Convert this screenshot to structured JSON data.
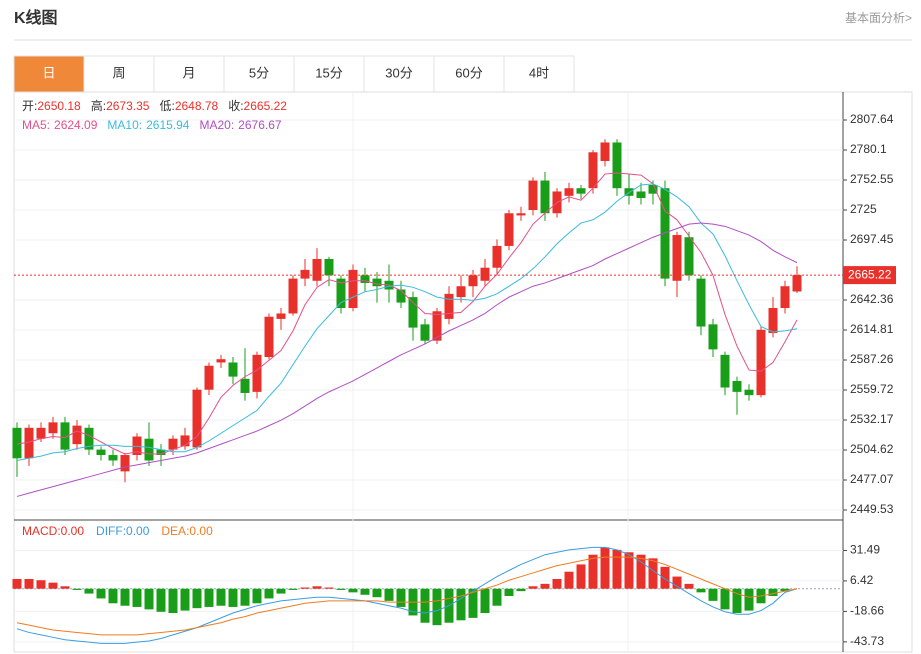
{
  "header": {
    "title": "K线图",
    "link": "基本面分析>"
  },
  "tabs": {
    "items": [
      "日",
      "周",
      "月",
      "5分",
      "15分",
      "30分",
      "60分",
      "4时"
    ],
    "active": 0
  },
  "chart_data": [
    {
      "type": "candlestick",
      "info_labels": [
        "开:",
        "高:",
        "低:",
        "收:"
      ],
      "open": [
        2525,
        2497,
        2515,
        2520,
        2530,
        2510,
        2525,
        2505,
        2500,
        2485,
        2500,
        2515,
        2505,
        2505,
        2508,
        2507,
        2560,
        2585,
        2585,
        2570,
        2558,
        2590,
        2625,
        2630,
        2662,
        2660,
        2680,
        2662,
        2635,
        2665,
        2662,
        2660,
        2652,
        2645,
        2620,
        2605,
        2625,
        2645,
        2655,
        2660,
        2672,
        2692,
        2720,
        2725,
        2752,
        2722,
        2738,
        2745,
        2745,
        2770,
        2787,
        2745,
        2742,
        2748,
        2745,
        2660,
        2700,
        2662,
        2620,
        2592,
        2568,
        2560,
        2555,
        2612,
        2635,
        2650.18
      ],
      "high": [
        2530,
        2528,
        2530,
        2535,
        2535,
        2532,
        2528,
        2508,
        2505,
        2502,
        2520,
        2530,
        2510,
        2518,
        2525,
        2562,
        2585,
        2592,
        2590,
        2598,
        2595,
        2630,
        2635,
        2665,
        2680,
        2690,
        2682,
        2665,
        2675,
        2672,
        2668,
        2675,
        2660,
        2650,
        2625,
        2635,
        2655,
        2665,
        2670,
        2680,
        2698,
        2725,
        2728,
        2755,
        2760,
        2745,
        2750,
        2748,
        2780,
        2790,
        2790,
        2758,
        2750,
        2752,
        2752,
        2705,
        2705,
        2665,
        2625,
        2595,
        2572,
        2565,
        2618,
        2645,
        2660,
        2673.35
      ],
      "low": [
        2480,
        2490,
        2512,
        2515,
        2500,
        2505,
        2500,
        2495,
        2490,
        2475,
        2495,
        2490,
        2490,
        2500,
        2505,
        2505,
        2555,
        2580,
        2565,
        2550,
        2552,
        2588,
        2615,
        2628,
        2655,
        2655,
        2655,
        2630,
        2632,
        2650,
        2640,
        2640,
        2635,
        2605,
        2602,
        2602,
        2620,
        2640,
        2645,
        2655,
        2665,
        2688,
        2715,
        2720,
        2715,
        2718,
        2732,
        2735,
        2740,
        2765,
        2738,
        2730,
        2730,
        2730,
        2655,
        2645,
        2660,
        2610,
        2590,
        2555,
        2537,
        2550,
        2553,
        2608,
        2630,
        2648.78
      ],
      "close": [
        2497,
        2525,
        2525,
        2530,
        2505,
        2527,
        2505,
        2500,
        2495,
        2500,
        2517,
        2495,
        2500,
        2515,
        2518,
        2560,
        2582,
        2588,
        2572,
        2557,
        2592,
        2627,
        2630,
        2662,
        2670,
        2680,
        2665,
        2635,
        2670,
        2658,
        2655,
        2652,
        2640,
        2617,
        2605,
        2632,
        2648,
        2655,
        2665,
        2672,
        2692,
        2722,
        2722,
        2752,
        2722,
        2742,
        2745,
        2740,
        2778,
        2787,
        2745,
        2738,
        2736,
        2740,
        2662,
        2702,
        2665,
        2618,
        2597,
        2562,
        2558,
        2555,
        2615,
        2635,
        2655,
        2665.22
      ],
      "up_color": "#e8312b",
      "down_color": "#1a9e1a",
      "series": [
        {
          "name": "MA5:",
          "color": "#e5508a",
          "values": [
            2510,
            2512,
            2515,
            2517,
            2516,
            2522,
            2518,
            2512,
            2506,
            2501,
            2503,
            2501,
            2501,
            2505,
            2509,
            2517,
            2534,
            2553,
            2564,
            2572,
            2578,
            2587,
            2596,
            2614,
            2638,
            2654,
            2661,
            2658,
            2660,
            2660,
            2657,
            2656,
            2651,
            2640,
            2630,
            2629,
            2630,
            2631,
            2641,
            2655,
            2666,
            2681,
            2695,
            2712,
            2722,
            2732,
            2737,
            2734,
            2745,
            2758,
            2759,
            2758,
            2757,
            2749,
            2724,
            2716,
            2701,
            2686,
            2665,
            2629,
            2600,
            2578,
            2577,
            2585,
            2604,
            2624.09
          ]
        },
        {
          "name": "MA10:",
          "color": "#3bbbd9",
          "values": [
            2495,
            2497,
            2499,
            2502,
            2503,
            2506,
            2508,
            2509,
            2509,
            2508,
            2508,
            2507,
            2505,
            2503,
            2503,
            2507,
            2513,
            2520,
            2527,
            2534,
            2541,
            2554,
            2566,
            2583,
            2600,
            2616,
            2628,
            2640,
            2645,
            2650,
            2652,
            2655,
            2656,
            2654,
            2650,
            2645,
            2643,
            2643,
            2642,
            2644,
            2648,
            2655,
            2662,
            2671,
            2682,
            2694,
            2704,
            2713,
            2716,
            2723,
            2733,
            2741,
            2748,
            2749,
            2744,
            2737,
            2728,
            2713,
            2703,
            2683,
            2660,
            2638,
            2618,
            2613,
            2614,
            2615.94
          ]
        },
        {
          "name": "MA20:",
          "color": "#b04fc4",
          "values": [
            2462,
            2465,
            2468,
            2471,
            2474,
            2477,
            2480,
            2483,
            2486,
            2489,
            2491,
            2493,
            2495,
            2497,
            2499,
            2502,
            2506,
            2510,
            2514,
            2518,
            2522,
            2527,
            2532,
            2538,
            2545,
            2552,
            2558,
            2563,
            2568,
            2574,
            2580,
            2586,
            2592,
            2597,
            2602,
            2608,
            2614,
            2619,
            2624,
            2630,
            2638,
            2645,
            2650,
            2655,
            2658,
            2662,
            2666,
            2670,
            2674,
            2680,
            2685,
            2690,
            2695,
            2700,
            2704,
            2708,
            2712,
            2713,
            2712,
            2710,
            2706,
            2702,
            2696,
            2688,
            2682,
            2676.67
          ]
        }
      ],
      "ylim": [
        2440.35,
        2833.34
      ],
      "yticks": [
        2449.53,
        2477.07,
        2504.62,
        2532.17,
        2559.72,
        2587.26,
        2614.81,
        2642.36,
        2697.45,
        2725.0,
        2752.55,
        2780.1,
        2807.64
      ],
      "grid": true
    },
    {
      "type": "macd",
      "up_color": "#e8312b",
      "down_color": "#1a9e1a",
      "series": [
        {
          "name": "MACD:",
          "color": "#e8312b",
          "last_label": "0.00",
          "values": [
            8,
            8,
            7,
            5,
            2,
            -1,
            -4,
            -8,
            -12,
            -14,
            -15,
            -17,
            -19,
            -20,
            -18,
            -16,
            -15,
            -14,
            -15,
            -14,
            -12,
            -8,
            -4,
            -1,
            1,
            2,
            1,
            -1,
            -3,
            -5,
            -7,
            -10,
            -15,
            -22,
            -28,
            -30,
            -28,
            -26,
            -24,
            -20,
            -14,
            -6,
            -2,
            2,
            4,
            8,
            14,
            20,
            28,
            34,
            32,
            30,
            28,
            25,
            18,
            10,
            4,
            -3,
            -10,
            -17,
            -20,
            -18,
            -12,
            -6,
            -2,
            0
          ]
        },
        {
          "name": "DIFF:",
          "color": "#3a9de0",
          "last_label": "0.00",
          "values": [
            -33,
            -36,
            -38,
            -40,
            -42,
            -43,
            -44,
            -45,
            -45,
            -45,
            -44,
            -43,
            -41,
            -38,
            -35,
            -32,
            -28,
            -24,
            -20,
            -17,
            -14,
            -12,
            -10,
            -9,
            -8,
            -7,
            -7,
            -8,
            -9,
            -10,
            -12,
            -14,
            -16,
            -19,
            -20,
            -18,
            -14,
            -8,
            -2,
            4,
            10,
            15,
            20,
            24,
            28,
            30,
            32,
            33,
            34,
            34,
            32,
            28,
            22,
            15,
            8,
            2,
            -4,
            -10,
            -15,
            -19,
            -21,
            -21,
            -18,
            -12,
            -3,
            0
          ]
        },
        {
          "name": "DEA:",
          "color": "#f07c22",
          "last_label": "0.00",
          "values": [
            -28,
            -30,
            -32,
            -34,
            -35,
            -36,
            -37,
            -38,
            -38,
            -38,
            -38,
            -37,
            -36,
            -35,
            -34,
            -32,
            -30,
            -28,
            -25,
            -23,
            -20,
            -18,
            -16,
            -14,
            -12,
            -11,
            -10,
            -10,
            -10,
            -10,
            -10,
            -11,
            -11,
            -11,
            -11,
            -10,
            -8,
            -6,
            -3,
            0,
            3,
            7,
            10,
            13,
            16,
            19,
            21,
            23,
            25,
            26,
            26,
            26,
            25,
            23,
            20,
            16,
            12,
            8,
            4,
            0,
            -4,
            -7,
            -6,
            -4,
            -2,
            0
          ]
        }
      ],
      "ylim": [
        -52.09,
        56.56
      ],
      "yticks": [
        -43.73,
        -18.66,
        6.42,
        31.49
      ],
      "grid": true
    }
  ]
}
